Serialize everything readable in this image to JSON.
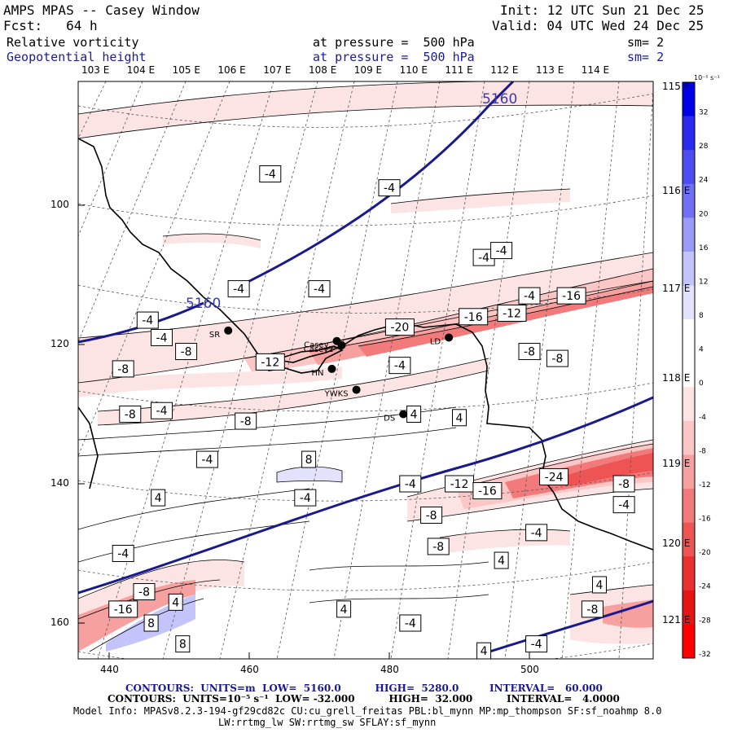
{
  "header": {
    "title": "AMPS MPAS -- Casey Window",
    "fcst": "Fcst:   64 h",
    "init": "Init: 12 UTC Sun 21 Dec 25",
    "valid": "Valid: 04 UTC Wed 24 Dec 25",
    "field1": {
      "name": "Relative vorticity",
      "level": "at pressure =  500 hPa",
      "sm": "sm= 2"
    },
    "field2": {
      "name": "Geopotential height",
      "level": "at pressure =  500 hPa",
      "sm": "sm= 2"
    }
  },
  "map": {
    "lon_labels_top": [
      "103 E",
      "104 E",
      "105 E",
      "106 E",
      "107 E",
      "108 E",
      "109 E",
      "110 E",
      "111 E",
      "112 E",
      "113 E",
      "114 E"
    ],
    "lon_labels_right": [
      "115 E",
      "116 E",
      "117 E",
      "118 E",
      "119 E",
      "120 E",
      "121 E"
    ],
    "x_ticks": [
      "440",
      "460",
      "480",
      "500"
    ],
    "y_ticks": [
      "100",
      "120",
      "140",
      "160"
    ],
    "height_contour_label": "5160",
    "stations": [
      {
        "name": "SR",
        "x": 457,
        "y": 118
      },
      {
        "name": "Casey",
        "x": 472.5,
        "y": 119.5
      },
      {
        "name": "Casey2",
        "x": 473.2,
        "y": 120.1
      },
      {
        "name": "HN",
        "x": 471.8,
        "y": 123.5
      },
      {
        "name": "YWKS",
        "x": 475.3,
        "y": 126.5
      },
      {
        "name": "DS",
        "x": 482,
        "y": 130
      },
      {
        "name": "LD",
        "x": 488.5,
        "y": 119
      }
    ],
    "vorticity_labels": [
      {
        "t": "-4",
        "x": 463,
        "y": 95.5
      },
      {
        "t": "-4",
        "x": 480,
        "y": 97.5
      },
      {
        "t": "-4",
        "x": 493.5,
        "y": 107.5
      },
      {
        "t": "-4",
        "x": 496,
        "y": 106.5
      },
      {
        "t": "-4",
        "x": 458.5,
        "y": 112
      },
      {
        "t": "-4",
        "x": 470,
        "y": 112
      },
      {
        "t": "-4",
        "x": 445.5,
        "y": 116.5
      },
      {
        "t": "-4",
        "x": 447.5,
        "y": 119
      },
      {
        "t": "-8",
        "x": 451,
        "y": 121
      },
      {
        "t": "-8",
        "x": 442,
        "y": 123.5
      },
      {
        "t": "-12",
        "x": 463,
        "y": 122.5
      },
      {
        "t": "-20",
        "x": 481.5,
        "y": 117.5
      },
      {
        "t": "-12",
        "x": 497.5,
        "y": 115.5
      },
      {
        "t": "-16",
        "x": 492,
        "y": 116
      },
      {
        "t": "-16",
        "x": 506,
        "y": 113
      },
      {
        "t": "-4",
        "x": 500,
        "y": 113
      },
      {
        "t": "-8",
        "x": 500,
        "y": 121
      },
      {
        "t": "-8",
        "x": 504,
        "y": 122
      },
      {
        "t": "-4",
        "x": 481.5,
        "y": 123
      },
      {
        "t": "-8",
        "x": 443,
        "y": 130
      },
      {
        "t": "-4",
        "x": 447.5,
        "y": 129.5
      },
      {
        "t": "-8",
        "x": 459.5,
        "y": 131
      },
      {
        "t": "4",
        "x": 483.5,
        "y": 130
      },
      {
        "t": "4",
        "x": 490,
        "y": 130.5
      },
      {
        "t": "-4",
        "x": 454,
        "y": 136.5
      },
      {
        "t": "8",
        "x": 468.5,
        "y": 136.5
      },
      {
        "t": "-4",
        "x": 468,
        "y": 142
      },
      {
        "t": "4",
        "x": 447,
        "y": 142
      },
      {
        "t": "-4",
        "x": 483,
        "y": 140
      },
      {
        "t": "-12",
        "x": 490,
        "y": 140
      },
      {
        "t": "-16",
        "x": 494,
        "y": 141
      },
      {
        "t": "-24",
        "x": 503.5,
        "y": 139
      },
      {
        "t": "-8",
        "x": 513.5,
        "y": 140
      },
      {
        "t": "-8",
        "x": 486,
        "y": 144.5
      },
      {
        "t": "-4",
        "x": 513.5,
        "y": 143
      },
      {
        "t": "-8",
        "x": 487,
        "y": 149
      },
      {
        "t": "-4",
        "x": 501,
        "y": 147
      },
      {
        "t": "-4",
        "x": 442,
        "y": 150
      },
      {
        "t": "4",
        "x": 496,
        "y": 151
      },
      {
        "t": "-8",
        "x": 445,
        "y": 155.5
      },
      {
        "t": "4",
        "x": 510,
        "y": 154.5
      },
      {
        "t": "-16",
        "x": 442,
        "y": 158
      },
      {
        "t": "4",
        "x": 449.5,
        "y": 157
      },
      {
        "t": "4",
        "x": 473.5,
        "y": 158
      },
      {
        "t": "-8",
        "x": 509,
        "y": 158
      },
      {
        "t": "8",
        "x": 446,
        "y": 160
      },
      {
        "t": "-4",
        "x": 483,
        "y": 160
      },
      {
        "t": "8",
        "x": 450.5,
        "y": 163
      },
      {
        "t": "-4",
        "x": 501,
        "y": 163
      },
      {
        "t": "4",
        "x": 493.5,
        "y": 164
      }
    ]
  },
  "colorbar": {
    "unit": "10⁻⁵ s⁻¹",
    "levels": [
      "32",
      "28",
      "24",
      "20",
      "16",
      "12",
      "8",
      "4",
      "0",
      "-4",
      "-8",
      "-12",
      "-16",
      "-20",
      "-24",
      "-28",
      "-32"
    ],
    "colors": [
      "#0000e6",
      "#2a2aee",
      "#4d4df2",
      "#7070f4",
      "#9a9af7",
      "#c4c4fb",
      "#e2e2fd",
      "#ffffff",
      "#ffffff",
      "#fde4e4",
      "#fbc6c6",
      "#f7a0a0",
      "#f37a7a",
      "#ee5454",
      "#ea3030",
      "#e61414",
      "#ff0000"
    ]
  },
  "footer": {
    "line1": "CONTOURS:  UNITS=m  LOW=  5160.0          HIGH=  5280.0         INTERVAL=   60.000",
    "line2": "CONTOURS:  UNITS=10⁻⁵ s⁻¹  LOW= -32.000          HIGH=  32.000          INTERVAL=   4.0000",
    "line3": "Model Info: MPASv8.2.3-194-gf29cd82c CU:cu_grell_freitas PBL:bl_mynn MP:mp_thompson SF:sf_noahmp 8.0",
    "line4": "LW:rrtmg_lw SW:rrtmg_sw SFLAY:sf_mynn"
  }
}
